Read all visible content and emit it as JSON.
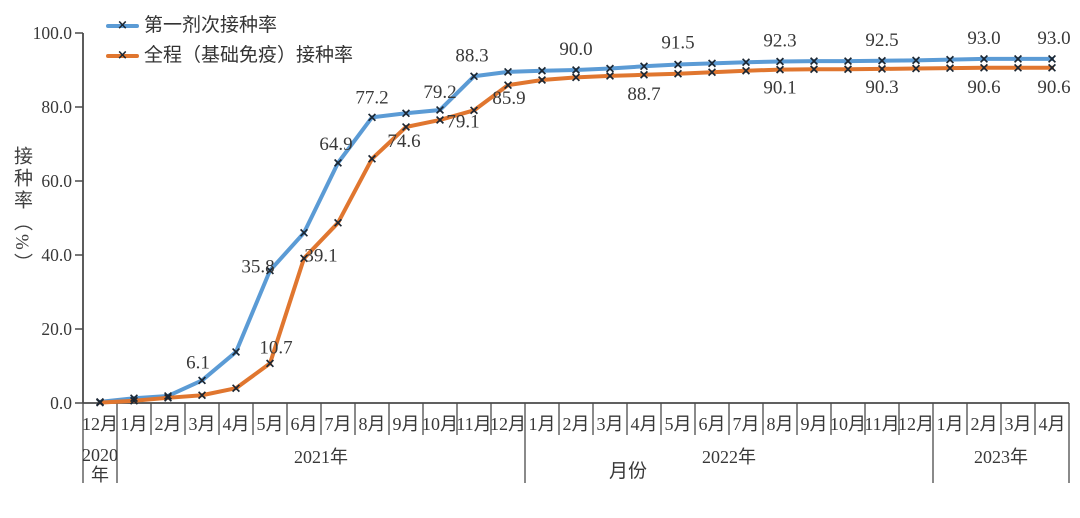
{
  "chart_data": {
    "type": "line",
    "title": "",
    "xlabel": "月份",
    "ylabel": "接种率（%）",
    "ylim": [
      0,
      100
    ],
    "y_ticks": [
      "0.0",
      "20.0",
      "40.0",
      "60.0",
      "80.0",
      "100.0"
    ],
    "grid": false,
    "legend_position": "top-left",
    "marker": "x",
    "marker_glyph": "×",
    "axis_color": "#4a4a4a",
    "text_color": "#383838",
    "categories": [
      "12月",
      "1月",
      "2月",
      "3月",
      "4月",
      "5月",
      "6月",
      "7月",
      "8月",
      "9月",
      "10月",
      "11月",
      "12月",
      "1月",
      "2月",
      "3月",
      "4月",
      "5月",
      "6月",
      "7月",
      "8月",
      "9月",
      "10月",
      "11月",
      "12月",
      "1月",
      "2月",
      "3月",
      "4月"
    ],
    "year_groups": [
      {
        "label": "2020年",
        "label_lines": [
          "2020",
          "年"
        ],
        "span": [
          0,
          1
        ]
      },
      {
        "label": "2021年",
        "span": [
          1,
          13
        ]
      },
      {
        "label": "2022年",
        "span": [
          13,
          25
        ]
      },
      {
        "label": "2023年",
        "span": [
          25,
          29
        ]
      }
    ],
    "series": [
      {
        "name": "第一剂次接种率",
        "color": "#5B9BD5",
        "label_side": "above",
        "values": [
          0.3,
          1.3,
          1.9,
          6.1,
          13.8,
          35.8,
          46.0,
          64.9,
          77.2,
          78.3,
          79.2,
          88.3,
          89.5,
          89.8,
          90.0,
          90.4,
          91.0,
          91.5,
          91.8,
          92.1,
          92.3,
          92.4,
          92.4,
          92.5,
          92.6,
          92.8,
          93.0,
          93.0,
          93.0
        ],
        "point_labels": [
          {
            "i": 3,
            "text": "6.1",
            "dx": -4,
            "dy": -12
          },
          {
            "i": 5,
            "text": "35.8",
            "dx": -12,
            "dy": 2
          },
          {
            "i": 7,
            "text": "64.9",
            "dx": -2,
            "dy": -13
          },
          {
            "i": 8,
            "text": "77.2",
            "dx": 0,
            "dy": -14
          },
          {
            "i": 10,
            "text": "79.2",
            "dx": 0,
            "dy": -12
          },
          {
            "i": 11,
            "text": "88.3",
            "dx": -2,
            "dy": -15
          },
          {
            "i": 14,
            "text": "90.0",
            "dx": 0,
            "dy": -15
          },
          {
            "i": 17,
            "text": "91.5",
            "dx": 0,
            "dy": -16
          },
          {
            "i": 20,
            "text": "92.3",
            "dx": 0,
            "dy": -15
          },
          {
            "i": 23,
            "text": "92.5",
            "dx": 0,
            "dy": -15
          },
          {
            "i": 26,
            "text": "93.0",
            "dx": 0,
            "dy": -15
          },
          {
            "i": 28,
            "text": "93.0",
            "dx": 2,
            "dy": -15
          }
        ]
      },
      {
        "name": "全程（基础免疫）接种率",
        "color": "#E0762F",
        "label_side": "below",
        "values": [
          0.1,
          0.6,
          1.4,
          2.1,
          4.0,
          10.7,
          39.1,
          48.7,
          66.0,
          74.6,
          76.5,
          79.1,
          85.9,
          87.3,
          88.0,
          88.4,
          88.7,
          89.0,
          89.4,
          89.8,
          90.1,
          90.2,
          90.2,
          90.3,
          90.4,
          90.5,
          90.6,
          90.6,
          90.6
        ],
        "point_labels": [
          {
            "i": 5,
            "text": "10.7",
            "dx": 6,
            "dy": -10
          },
          {
            "i": 6,
            "text": "39.1",
            "dx": 17,
            "dy": 3
          },
          {
            "i": 9,
            "text": "74.6",
            "dx": -2,
            "dy": 20
          },
          {
            "i": 11,
            "text": "79.1",
            "dx": -11,
            "dy": 17
          },
          {
            "i": 12,
            "text": "85.9",
            "dx": 1,
            "dy": 19
          },
          {
            "i": 16,
            "text": "88.7",
            "dx": 0,
            "dy": 25
          },
          {
            "i": 20,
            "text": "90.1",
            "dx": 0,
            "dy": 24
          },
          {
            "i": 23,
            "text": "90.3",
            "dx": 0,
            "dy": 24
          },
          {
            "i": 26,
            "text": "90.6",
            "dx": 0,
            "dy": 25
          },
          {
            "i": 28,
            "text": "90.6",
            "dx": 2,
            "dy": 25
          }
        ]
      }
    ]
  }
}
